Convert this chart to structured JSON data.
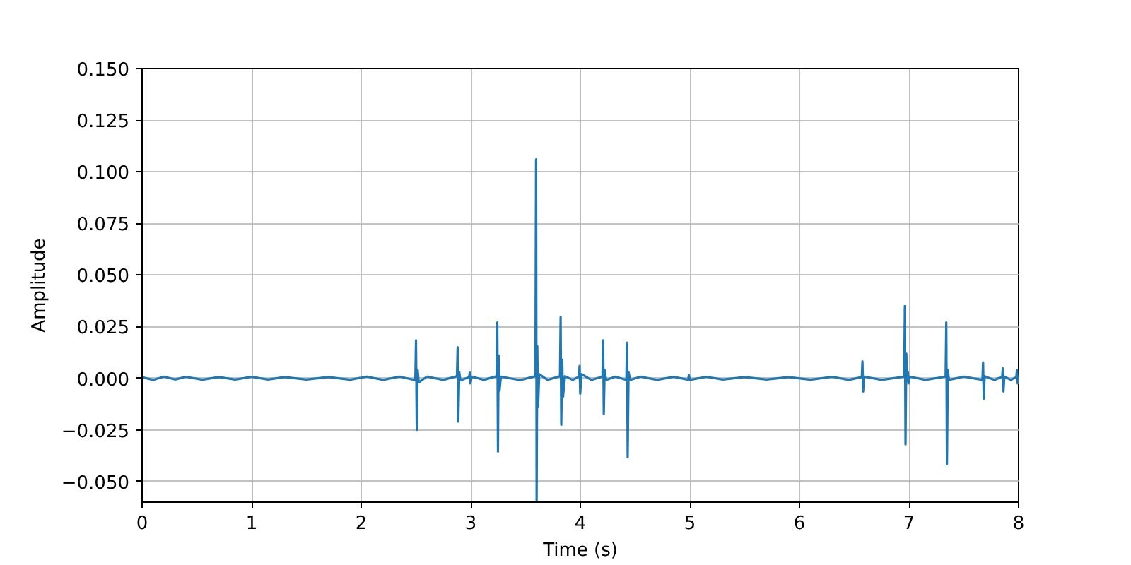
{
  "chart_data": {
    "type": "line",
    "xlabel": "Time (s)",
    "ylabel": "Amplitude",
    "color": "#1f77b4",
    "grid": true,
    "line_style": "solid",
    "marker": "none",
    "xlim": [
      0,
      8
    ],
    "ylim": [
      -0.06,
      0.15
    ],
    "xticks": [
      0,
      1,
      2,
      3,
      4,
      5,
      6,
      7,
      8
    ],
    "yticks": [
      {
        "value": -0.05,
        "label": "−0.050"
      },
      {
        "value": -0.025,
        "label": "−0.025"
      },
      {
        "value": 0,
        "label": "0.000"
      },
      {
        "value": 0.025,
        "label": "0.025"
      },
      {
        "value": 0.05,
        "label": "0.050"
      },
      {
        "value": 0.075,
        "label": "0.075"
      },
      {
        "value": 0.1,
        "label": "0.100"
      },
      {
        "value": 0.125,
        "label": "0.125"
      },
      {
        "value": 0.15,
        "label": "0.150"
      }
    ],
    "x": [
      0.0,
      0.1,
      0.2,
      0.3,
      0.4,
      0.55,
      0.7,
      0.85,
      1.0,
      1.15,
      1.3,
      1.5,
      1.7,
      1.9,
      2.05,
      2.2,
      2.35,
      2.494,
      2.5,
      2.507,
      2.515,
      2.525,
      2.6,
      2.75,
      2.874,
      2.88,
      2.886,
      2.895,
      2.905,
      2.985,
      2.99,
      2.996,
      3.01,
      3.12,
      3.236,
      3.242,
      3.248,
      3.254,
      3.262,
      3.275,
      3.45,
      3.59,
      3.596,
      3.601,
      3.607,
      3.614,
      3.625,
      3.7,
      3.814,
      3.82,
      3.826,
      3.834,
      3.842,
      3.86,
      3.93,
      3.987,
      3.993,
      3.999,
      4.01,
      4.1,
      4.202,
      4.208,
      4.214,
      4.222,
      4.235,
      4.32,
      4.42,
      4.426,
      4.432,
      4.44,
      4.455,
      4.55,
      4.7,
      4.85,
      4.984,
      4.99,
      5.0,
      5.15,
      5.3,
      5.5,
      5.7,
      5.9,
      6.1,
      6.3,
      6.45,
      6.569,
      6.575,
      6.581,
      6.59,
      6.75,
      6.956,
      6.962,
      6.968,
      6.975,
      6.983,
      6.99,
      6.995,
      7.005,
      7.15,
      7.334,
      7.34,
      7.346,
      7.354,
      7.365,
      7.5,
      7.67,
      7.676,
      7.682,
      7.69,
      7.78,
      7.85,
      7.856,
      7.862,
      7.87,
      7.93,
      7.979,
      7.985,
      7.992,
      8.0
    ],
    "values": [
      0.0005,
      -0.0008,
      0.0008,
      -0.0006,
      0.0007,
      -0.0007,
      0.0006,
      -0.0006,
      0.0007,
      -0.0006,
      0.0006,
      -0.0006,
      0.0006,
      -0.0007,
      0.0008,
      -0.0008,
      0.0008,
      -0.0009,
      0.0184,
      -0.025,
      0.004,
      -0.002,
      0.0008,
      -0.0008,
      0.001,
      0.015,
      -0.021,
      0.003,
      -0.001,
      0.0005,
      0.0027,
      -0.0025,
      0.0008,
      -0.0008,
      0.001,
      0.027,
      -0.0355,
      0.011,
      -0.006,
      0.0008,
      -0.0009,
      0.001,
      0.106,
      -0.06,
      0.0157,
      -0.0137,
      0.002,
      -0.0008,
      0.001,
      0.0296,
      -0.0225,
      0.009,
      -0.009,
      0.001,
      -0.0008,
      0.0008,
      0.006,
      -0.0075,
      0.002,
      -0.0008,
      0.0008,
      0.0184,
      -0.0173,
      0.004,
      -0.0008,
      0.0008,
      -0.0008,
      0.0173,
      -0.0383,
      0.003,
      -0.0008,
      0.0008,
      -0.0008,
      0.0007,
      -0.0007,
      0.0015,
      -0.0008,
      0.0007,
      -0.0006,
      0.0006,
      -0.0006,
      0.0006,
      -0.0007,
      0.0007,
      -0.0008,
      0.0006,
      0.0082,
      -0.0064,
      0.0008,
      -0.0008,
      0.0008,
      0.035,
      -0.032,
      0.012,
      -0.001,
      0.003,
      -0.0025,
      0.0008,
      -0.0008,
      0.0008,
      0.027,
      -0.0417,
      0.004,
      -0.0008,
      0.0008,
      -0.0008,
      0.0077,
      -0.01,
      0.001,
      -0.0008,
      0.0008,
      0.0048,
      -0.0064,
      0.0008,
      -0.0008,
      0.0006,
      0.0039,
      -0.0025,
      0.001
    ]
  }
}
